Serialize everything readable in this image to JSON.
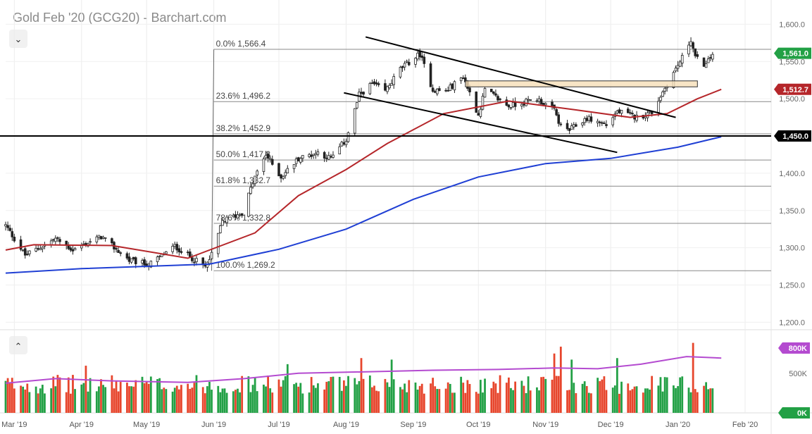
{
  "header": {
    "title": "Gold Feb '20 (GCG20) - Barchart.com"
  },
  "controls": {
    "collapse_glyph": "⌄",
    "expand_glyph": "⌃"
  },
  "colors": {
    "up": "#22a045",
    "down": "#e7452c",
    "ma_short": "#b5262a",
    "ma_long": "#1f3fd4",
    "vol_ma": "#b44bd0",
    "last_price": "#22a045",
    "ma_tag": "#b5262a",
    "level_tag": "#000000",
    "vol_tag": "#b44bd0"
  },
  "chart_data": {
    "type": "candlestick",
    "title": "Gold Feb '20 (GCG20) - Barchart.com",
    "x_labels": [
      "Mar '19",
      "Apr '19",
      "May '19",
      "Jun '19",
      "Jul '19",
      "Aug '19",
      "Sep '19",
      "Oct '19",
      "Nov '19",
      "Dec '19",
      "Jan '20",
      "Feb '20"
    ],
    "y_ticks": [
      "1,600.0",
      "1,550.0",
      "1,500.0",
      "1,450.0",
      "1,400.0",
      "1,350.0",
      "1,300.0",
      "1,250.0",
      "1,200.0"
    ],
    "ylim": [
      1190,
      1625
    ],
    "price_tags": {
      "last": "1,561.0",
      "ma": "1,512.7",
      "level": "1,450.0"
    },
    "fibonacci": [
      {
        "label": "0.0% 1,566.4",
        "price": 1566.4
      },
      {
        "label": "23.6% 1,496.2",
        "price": 1496.2
      },
      {
        "label": "38.2% 1,452.9",
        "price": 1452.9
      },
      {
        "label": "50.0% 1,417.8",
        "price": 1417.8
      },
      {
        "label": "61.8% 1,382.7",
        "price": 1382.7
      },
      {
        "label": "78.6% 1,332.8",
        "price": 1332.8
      },
      {
        "label": "100.0% 1,269.2",
        "price": 1269.2
      }
    ],
    "support_level": 1450,
    "anchors": [
      {
        "date": "2019-02-25",
        "price": 1330
      },
      {
        "date": "2019-03-06",
        "price": 1290
      },
      {
        "date": "2019-03-20",
        "price": 1312
      },
      {
        "date": "2019-03-28",
        "price": 1297
      },
      {
        "date": "2019-04-10",
        "price": 1315
      },
      {
        "date": "2019-04-23",
        "price": 1283
      },
      {
        "date": "2019-05-02",
        "price": 1277
      },
      {
        "date": "2019-05-14",
        "price": 1302
      },
      {
        "date": "2019-05-28",
        "price": 1274
      },
      {
        "date": "2019-05-31",
        "price": 1290
      },
      {
        "date": "2019-06-05",
        "price": 1336
      },
      {
        "date": "2019-06-14",
        "price": 1347
      },
      {
        "date": "2019-06-20",
        "price": 1395
      },
      {
        "date": "2019-06-25",
        "price": 1425
      },
      {
        "date": "2019-07-02",
        "price": 1395
      },
      {
        "date": "2019-07-10",
        "price": 1420
      },
      {
        "date": "2019-07-19",
        "price": 1428
      },
      {
        "date": "2019-07-25",
        "price": 1420
      },
      {
        "date": "2019-08-01",
        "price": 1445
      },
      {
        "date": "2019-08-07",
        "price": 1505
      },
      {
        "date": "2019-08-13",
        "price": 1520
      },
      {
        "date": "2019-08-19",
        "price": 1510
      },
      {
        "date": "2019-08-26",
        "price": 1540
      },
      {
        "date": "2019-09-04",
        "price": 1560
      },
      {
        "date": "2019-09-10",
        "price": 1512
      },
      {
        "date": "2019-09-16",
        "price": 1510
      },
      {
        "date": "2019-09-24",
        "price": 1530
      },
      {
        "date": "2019-10-01",
        "price": 1478
      },
      {
        "date": "2019-10-04",
        "price": 1512
      },
      {
        "date": "2019-10-15",
        "price": 1490
      },
      {
        "date": "2019-10-28",
        "price": 1500
      },
      {
        "date": "2019-11-05",
        "price": 1485
      },
      {
        "date": "2019-11-08",
        "price": 1462
      },
      {
        "date": "2019-11-12",
        "price": 1458
      },
      {
        "date": "2019-11-20",
        "price": 1474
      },
      {
        "date": "2019-11-29",
        "price": 1465
      },
      {
        "date": "2019-12-04",
        "price": 1483
      },
      {
        "date": "2019-12-13",
        "price": 1475
      },
      {
        "date": "2019-12-20",
        "price": 1482
      },
      {
        "date": "2019-12-27",
        "price": 1520
      },
      {
        "date": "2020-01-03",
        "price": 1555
      },
      {
        "date": "2020-01-07",
        "price": 1580
      },
      {
        "date": "2020-01-09",
        "price": 1555
      },
      {
        "date": "2020-01-14",
        "price": 1545
      },
      {
        "date": "2020-01-17",
        "price": 1561
      }
    ],
    "ma_short_path": [
      {
        "date": "2019-02-25",
        "price": 1297
      },
      {
        "date": "2019-03-10",
        "price": 1304
      },
      {
        "date": "2019-04-15",
        "price": 1303
      },
      {
        "date": "2019-05-20",
        "price": 1286
      },
      {
        "date": "2019-06-20",
        "price": 1320
      },
      {
        "date": "2019-07-10",
        "price": 1370
      },
      {
        "date": "2019-08-01",
        "price": 1405
      },
      {
        "date": "2019-08-20",
        "price": 1440
      },
      {
        "date": "2019-09-15",
        "price": 1480
      },
      {
        "date": "2019-10-15",
        "price": 1497
      },
      {
        "date": "2019-11-15",
        "price": 1485
      },
      {
        "date": "2019-12-10",
        "price": 1475
      },
      {
        "date": "2019-12-27",
        "price": 1480
      },
      {
        "date": "2020-01-10",
        "price": 1500
      },
      {
        "date": "2020-01-21",
        "price": 1512.7
      }
    ],
    "ma_long_path": [
      {
        "date": "2019-02-25",
        "price": 1266
      },
      {
        "date": "2019-04-01",
        "price": 1272
      },
      {
        "date": "2019-05-30",
        "price": 1278
      },
      {
        "date": "2019-07-01",
        "price": 1298
      },
      {
        "date": "2019-08-01",
        "price": 1325
      },
      {
        "date": "2019-09-01",
        "price": 1365
      },
      {
        "date": "2019-10-01",
        "price": 1395
      },
      {
        "date": "2019-11-01",
        "price": 1413
      },
      {
        "date": "2019-12-01",
        "price": 1420
      },
      {
        "date": "2020-01-01",
        "price": 1435
      },
      {
        "date": "2020-01-21",
        "price": 1449
      }
    ],
    "trendlines": [
      {
        "from": {
          "date": "2019-08-10",
          "price": 1583
        },
        "to": {
          "date": "2019-12-31",
          "price": 1475
        }
      },
      {
        "from": {
          "date": "2019-07-31",
          "price": 1508
        },
        "to": {
          "date": "2019-12-04",
          "price": 1428
        }
      }
    ],
    "zone": {
      "from_date": "2019-09-25",
      "to_date": "2020-01-10",
      "low": 1516,
      "high": 1524
    },
    "volume": {
      "ylim": [
        0,
        1000
      ],
      "ticks": [
        "800K",
        "500K",
        "0K"
      ],
      "spikes": [
        {
          "date": "2019-04-03",
          "value": 620
        },
        {
          "date": "2019-07-05",
          "value": 640
        },
        {
          "date": "2019-08-08",
          "value": 720
        },
        {
          "date": "2019-08-22",
          "value": 700
        },
        {
          "date": "2019-11-05",
          "value": 780
        },
        {
          "date": "2019-11-08",
          "value": 870
        },
        {
          "date": "2019-11-13",
          "value": 700
        },
        {
          "date": "2019-12-04",
          "value": 720
        },
        {
          "date": "2020-01-08",
          "value": 920
        }
      ],
      "ma_path": [
        {
          "date": "2019-02-25",
          "value": 390
        },
        {
          "date": "2019-03-20",
          "value": 450
        },
        {
          "date": "2019-04-15",
          "value": 420
        },
        {
          "date": "2019-05-20",
          "value": 400
        },
        {
          "date": "2019-06-15",
          "value": 450
        },
        {
          "date": "2019-07-10",
          "value": 520
        },
        {
          "date": "2019-08-10",
          "value": 540
        },
        {
          "date": "2019-09-10",
          "value": 560
        },
        {
          "date": "2019-10-10",
          "value": 570
        },
        {
          "date": "2019-11-05",
          "value": 590
        },
        {
          "date": "2019-11-25",
          "value": 580
        },
        {
          "date": "2019-12-15",
          "value": 640
        },
        {
          "date": "2020-01-05",
          "value": 740
        },
        {
          "date": "2020-01-21",
          "value": 720
        }
      ]
    }
  }
}
